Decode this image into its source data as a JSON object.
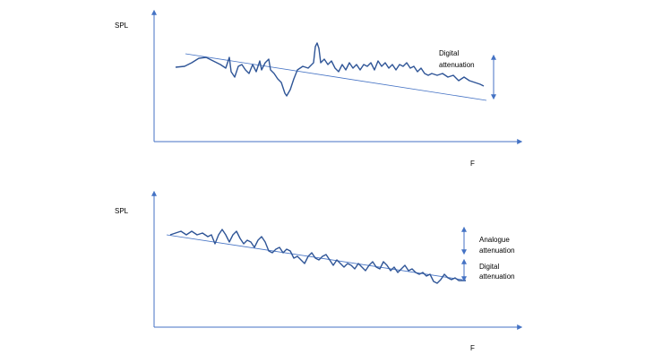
{
  "panels": [
    {
      "y_label": "SPL",
      "x_label": "F",
      "annotations": [
        {
          "lines": [
            "Digital",
            "attenuation"
          ]
        }
      ]
    },
    {
      "y_label": "SPL",
      "x_label": "F",
      "annotations": [
        {
          "lines": [
            "Analogue",
            "attenuation"
          ]
        },
        {
          "lines": [
            "Digital",
            "attenuation"
          ]
        }
      ]
    }
  ]
}
